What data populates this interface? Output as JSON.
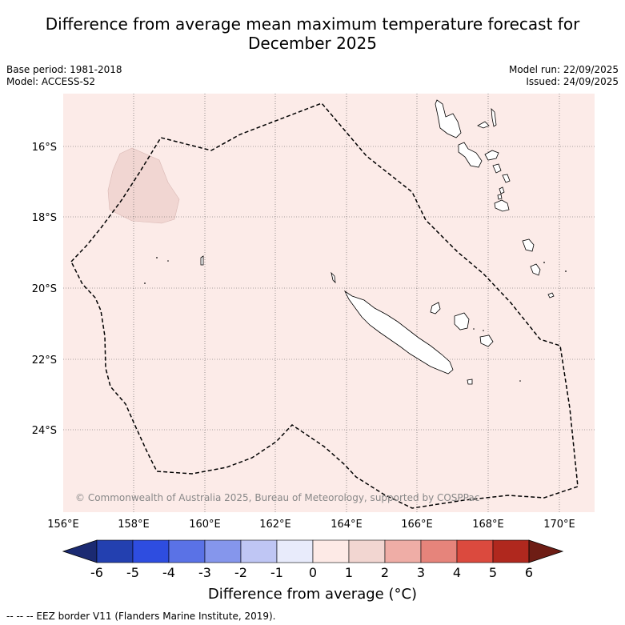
{
  "title_line1": "Difference from average mean maximum temperature forecast for",
  "title_line2": "December 2025",
  "base_period": "Base period: 1981-2018",
  "model": "Model: ACCESS-S2",
  "model_run": "Model run: 22/09/2025",
  "issued": "Issued: 24/09/2025",
  "copyright": "© Commonwealth of Australia 2025, Bureau of Meteorology, supported by COSPPac",
  "lat_labels": [
    "16°S",
    "18°S",
    "20°S",
    "22°S",
    "24°S"
  ],
  "lon_labels": [
    "156°E",
    "158°E",
    "160°E",
    "162°E",
    "164°E",
    "166°E",
    "168°E",
    "170°E"
  ],
  "colorbar": {
    "ticks": [
      "-6",
      "-5",
      "-4",
      "-3",
      "-2",
      "-1",
      "0",
      "1",
      "2",
      "3",
      "4",
      "5",
      "6"
    ],
    "under_color": "#1b2a72",
    "colors": [
      "#2340b0",
      "#2e4de0",
      "#5a72e6",
      "#8596ec",
      "#bfc6f4",
      "#e8ebfb",
      "#fdeae6",
      "#f2d6d1",
      "#efada6",
      "#e6847b",
      "#db4a3e",
      "#b0281e"
    ],
    "over_color": "#6e1d15",
    "title": "Difference from average (°C)"
  },
  "map_colors": {
    "background": "#fcebe8",
    "patch": "#f1d6d2"
  },
  "footnote": "-- -- -- EEZ border V11 (Flanders Marine Institute, 2019)."
}
